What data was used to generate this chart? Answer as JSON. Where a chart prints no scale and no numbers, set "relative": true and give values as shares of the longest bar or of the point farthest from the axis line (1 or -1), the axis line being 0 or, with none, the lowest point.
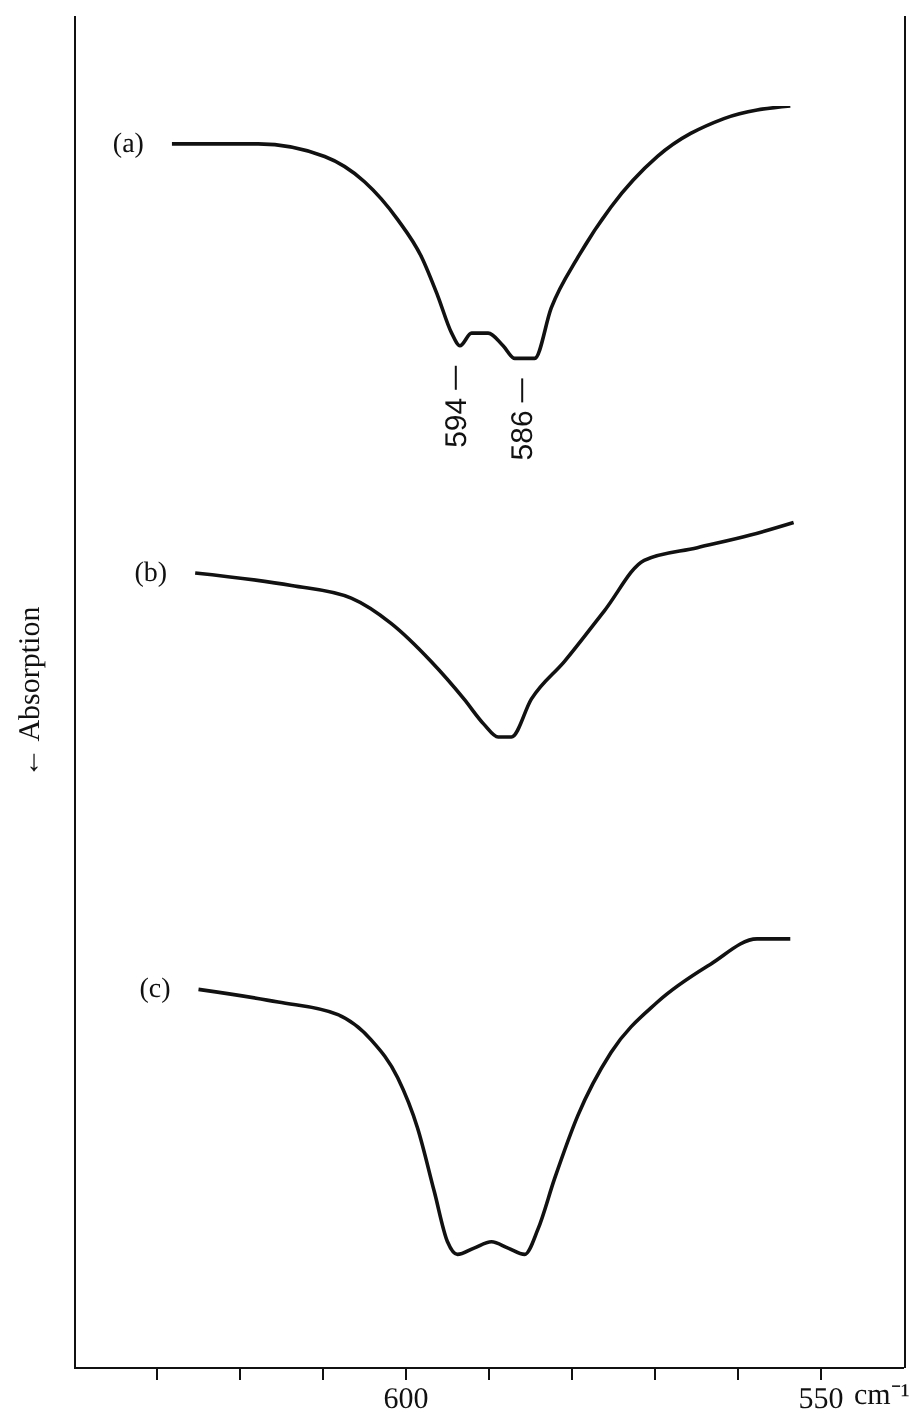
{
  "chart_data": {
    "type": "line",
    "relative": true,
    "ylabel": "← Absorption",
    "xlabel": "cm⁻¹",
    "xlim": [
      640,
      540
    ],
    "xticks": [
      {
        "value": 630,
        "label": null
      },
      {
        "value": 620,
        "label": null
      },
      {
        "value": 610,
        "label": null
      },
      600,
      {
        "value": 590,
        "label": null
      },
      {
        "value": 580,
        "label": null
      },
      {
        "value": 570,
        "label": null
      },
      {
        "value": 560,
        "label": null
      },
      550
    ],
    "marker": "none",
    "line_style": "solid",
    "series": [
      {
        "name": "(a)",
        "color": "#111111",
        "x": [
          628.2,
          617.8,
          609.8,
          605.0,
          601.0,
          598.1,
          596.2,
          594.5,
          593.5,
          592.1,
          590.1,
          588.3,
          586.9,
          585.7,
          584.5,
          582.5,
          579.3,
          575.3,
          569.7,
          561.7,
          553.7
        ],
        "values": [
          0.97,
          0.97,
          0.96,
          0.94,
          0.91,
          0.88,
          0.85,
          0.82,
          0.81,
          0.82,
          0.82,
          0.81,
          0.8,
          0.8,
          0.8,
          0.84,
          0.88,
          0.92,
          0.96,
          0.99,
          1.0
        ]
      },
      {
        "name": "(b)",
        "color": "#111111",
        "x": [
          625.4,
          613.8,
          606.6,
          601.8,
          597.0,
          593.0,
          590.6,
          588.9,
          587.3,
          584.9,
          580.9,
          576.1,
          571.3,
          564.9,
          558.5,
          553.3
        ],
        "values": [
          0.63,
          0.62,
          0.61,
          0.59,
          0.56,
          0.53,
          0.51,
          0.5,
          0.5,
          0.53,
          0.56,
          0.6,
          0.64,
          0.65,
          0.66,
          0.67
        ]
      },
      {
        "name": "(c)",
        "color": "#111111",
        "x": [
          625.0,
          615.4,
          608.2,
          604.2,
          601.0,
          598.6,
          596.6,
          595.0,
          593.8,
          591.8,
          589.7,
          587.7,
          585.7,
          584.1,
          582.1,
          579.3,
          575.3,
          569.7,
          563.3,
          557.7,
          553.7
        ],
        "values": [
          0.3,
          0.29,
          0.28,
          0.26,
          0.23,
          0.19,
          0.14,
          0.1,
          0.09,
          0.095,
          0.1,
          0.095,
          0.09,
          0.11,
          0.15,
          0.2,
          0.25,
          0.29,
          0.32,
          0.34,
          0.34
        ]
      }
    ],
    "annotations": [
      {
        "text": "594",
        "x": 594,
        "y": 0.81
      },
      {
        "text": "586",
        "x": 586,
        "y": 0.8
      }
    ]
  }
}
